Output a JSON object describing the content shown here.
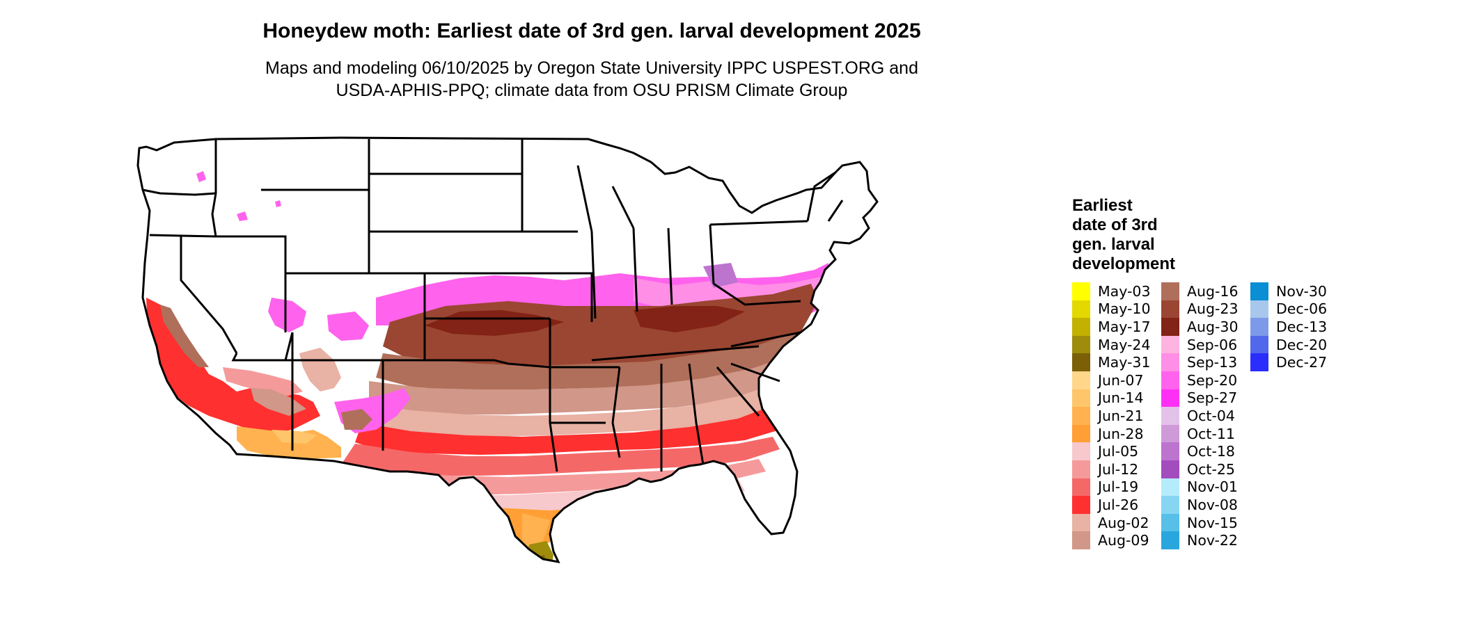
{
  "title": "Honeydew moth: Earliest date of 3rd gen. larval development 2025",
  "subtitle_lines": [
    "Maps and modeling 06/10/2025 by Oregon State University IPPC USPEST.ORG and",
    "USDA-APHIS-PPQ; climate data from OSU PRISM Climate Group"
  ],
  "legend": {
    "title_lines": [
      "Earliest",
      "date of 3rd",
      "gen. larval",
      "development"
    ],
    "columns": [
      [
        {
          "label": "May-03",
          "color": "#ffff00"
        },
        {
          "label": "May-10",
          "color": "#e3d800"
        },
        {
          "label": "May-17",
          "color": "#c3b100"
        },
        {
          "label": "May-24",
          "color": "#9e8c0a"
        },
        {
          "label": "May-31",
          "color": "#7b6008"
        },
        {
          "label": "Jun-07",
          "color": "#ffd68a"
        },
        {
          "label": "Jun-14",
          "color": "#ffc56b"
        },
        {
          "label": "Jun-21",
          "color": "#ffb24f"
        },
        {
          "label": "Jun-28",
          "color": "#ff9f35"
        },
        {
          "label": "Jul-05",
          "color": "#f7c8cc"
        },
        {
          "label": "Jul-12",
          "color": "#f59a9a"
        },
        {
          "label": "Jul-19",
          "color": "#f56868"
        },
        {
          "label": "Jul-26",
          "color": "#ff3030"
        },
        {
          "label": "Aug-02",
          "color": "#e8b2a4"
        },
        {
          "label": "Aug-09",
          "color": "#d19788"
        }
      ],
      [
        {
          "label": "Aug-16",
          "color": "#b06f5a"
        },
        {
          "label": "Aug-23",
          "color": "#9a4632"
        },
        {
          "label": "Aug-30",
          "color": "#832216"
        },
        {
          "label": "Sep-06",
          "color": "#ffb3e0"
        },
        {
          "label": "Sep-13",
          "color": "#ff8ee6"
        },
        {
          "label": "Sep-20",
          "color": "#ff62ec"
        },
        {
          "label": "Sep-27",
          "color": "#ff30f5"
        },
        {
          "label": "Oct-04",
          "color": "#e3c2ea"
        },
        {
          "label": "Oct-11",
          "color": "#cf9ad8"
        },
        {
          "label": "Oct-18",
          "color": "#bd74ce"
        },
        {
          "label": "Oct-25",
          "color": "#a24cbe"
        },
        {
          "label": "Nov-01",
          "color": "#b4ecfc"
        },
        {
          "label": "Nov-08",
          "color": "#86d6f2"
        },
        {
          "label": "Nov-15",
          "color": "#57bfe8"
        },
        {
          "label": "Nov-22",
          "color": "#2aa6df"
        }
      ],
      [
        {
          "label": "Nov-30",
          "color": "#0a8ed4"
        },
        {
          "label": "Dec-06",
          "color": "#a8c7ec"
        },
        {
          "label": "Dec-13",
          "color": "#7d9ae8"
        },
        {
          "label": "Dec-20",
          "color": "#5168ec"
        },
        {
          "label": "Dec-27",
          "color": "#2a2dfc"
        }
      ]
    ]
  }
}
